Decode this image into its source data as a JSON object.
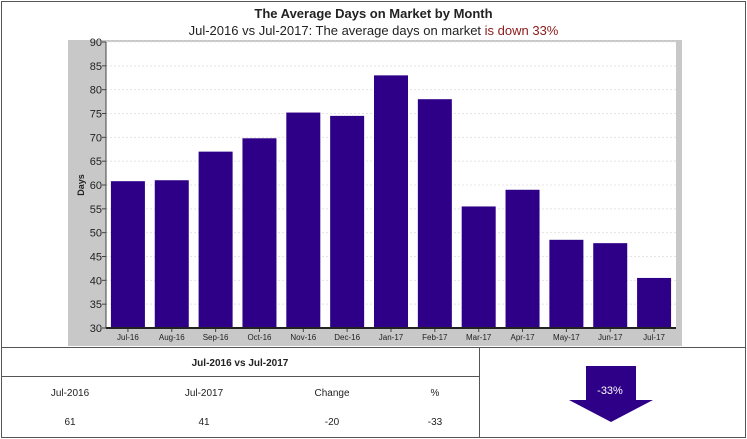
{
  "header": {
    "title": "The Average Days on Market by Month",
    "subtitle_prefix": "Jul-2016 vs Jul-2017: The average days on market ",
    "subtitle_trend": "is down 33%"
  },
  "chart_data": {
    "type": "bar",
    "categories": [
      "Jul-16",
      "Aug-16",
      "Sep-16",
      "Oct-16",
      "Nov-16",
      "Dec-16",
      "Jan-17",
      "Feb-17",
      "Mar-17",
      "Apr-17",
      "May-17",
      "Jun-17",
      "Jul-17"
    ],
    "values": [
      60.8,
      61,
      67,
      69.8,
      75.2,
      74.5,
      83,
      78,
      55.5,
      59,
      48.5,
      47.8,
      40.5
    ],
    "ylabel": "Days",
    "ylim": [
      30,
      90
    ],
    "yticks": [
      30,
      35,
      40,
      45,
      50,
      55,
      60,
      65,
      70,
      75,
      80,
      85,
      90
    ],
    "grid": true,
    "bar_color": "#2e0087"
  },
  "comparison": {
    "title": "Jul-2016 vs Jul-2017",
    "headers": [
      "Jul-2016",
      "Jul-2017",
      "Change",
      "%"
    ],
    "values": [
      "61",
      "41",
      "-20",
      "-33"
    ],
    "indicator_label": "-33%",
    "indicator_icon": "down-arrow-icon",
    "indicator_color": "#2e0087"
  }
}
